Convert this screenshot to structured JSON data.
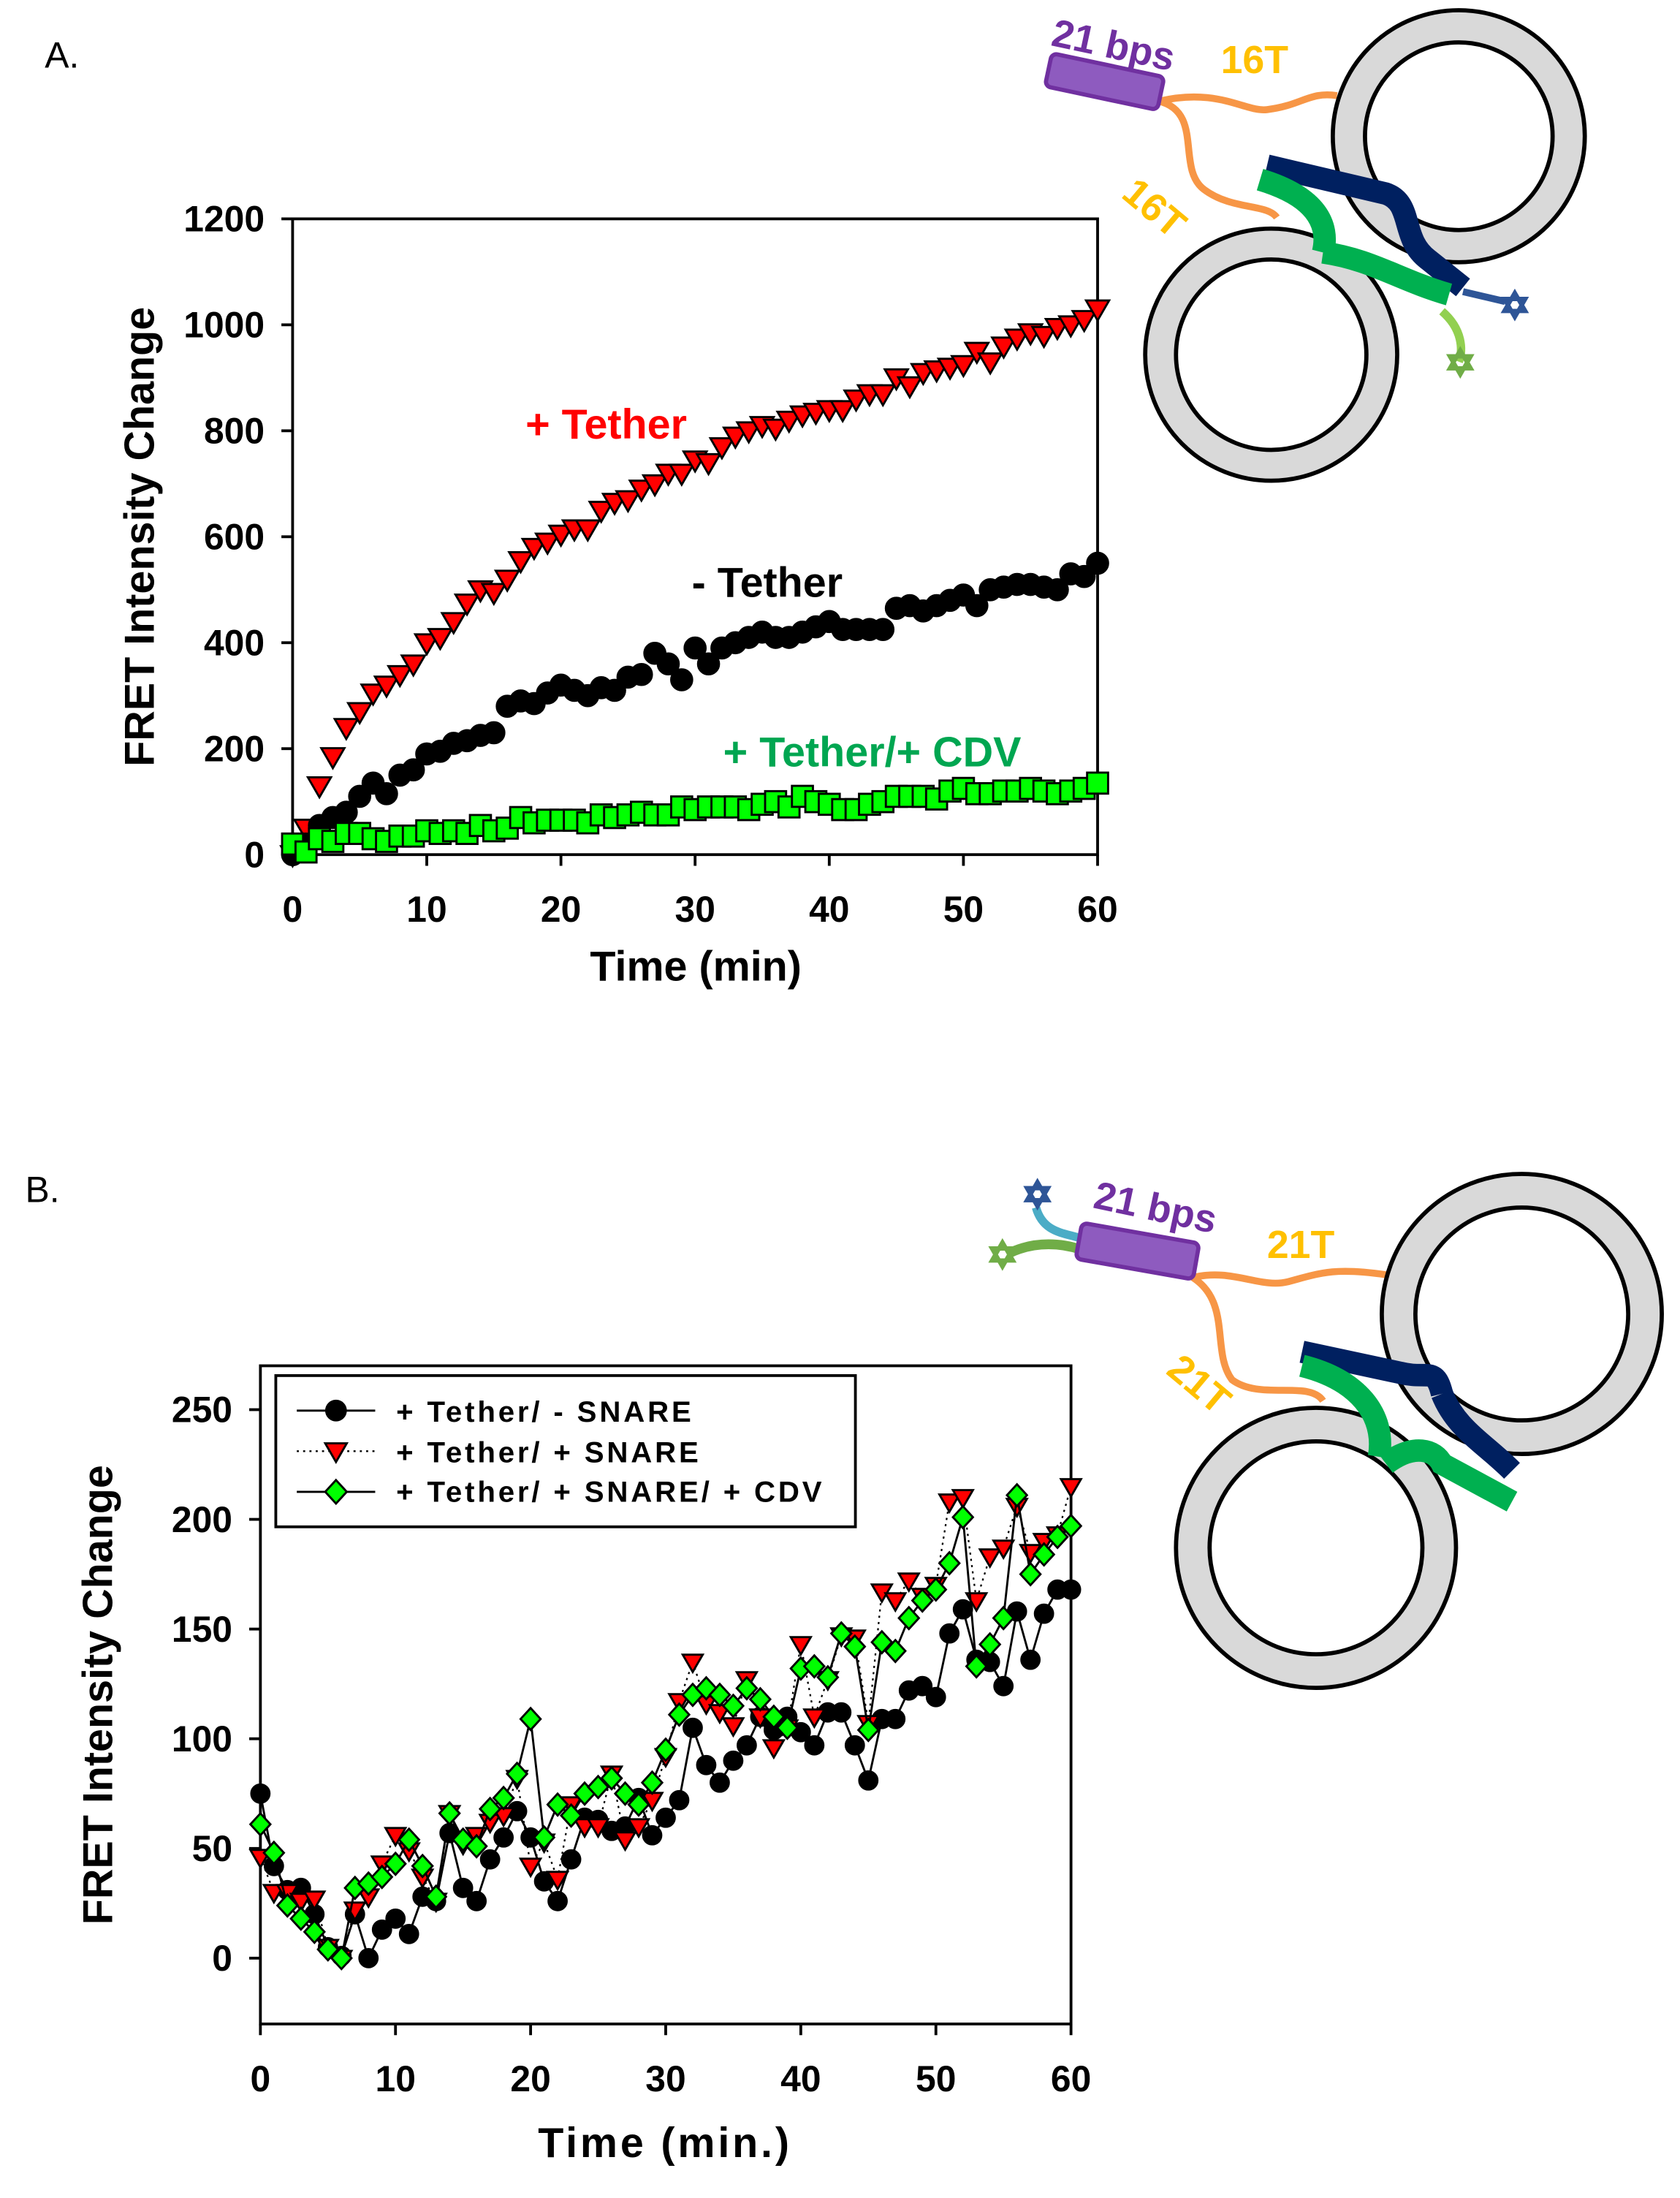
{
  "panels": {
    "a_label": "A.",
    "b_label": "B."
  },
  "diagram_a": {
    "bps": "21 bps",
    "linker_top": "16T",
    "linker_bottom": "16T"
  },
  "diagram_b": {
    "bps": "21 bps",
    "linker_top": "21T",
    "linker_bottom": "21T"
  },
  "colors": {
    "red": "#ff0000",
    "black": "#000000",
    "green": "#00ff00",
    "green_text": "#00a651",
    "purple": "#7030a0",
    "orange": "#f79646",
    "label_orange": "#ffc000",
    "navy": "#002060",
    "snare_green": "#00b050"
  },
  "chart_data": [
    {
      "type": "scatter",
      "xlabel": "Time (min)",
      "ylabel": "FRET Intensity Change",
      "xlim": [
        0,
        60
      ],
      "ylim": [
        0,
        1200
      ],
      "xticks": [
        0,
        10,
        20,
        30,
        40,
        50,
        60
      ],
      "yticks": [
        0,
        200,
        400,
        600,
        800,
        1000,
        1200
      ],
      "grid": false,
      "x": [
        0,
        1,
        2,
        3,
        4,
        5,
        6,
        7,
        8,
        9,
        10,
        11,
        12,
        13,
        14,
        15,
        16,
        17,
        18,
        19,
        20,
        21,
        22,
        23,
        24,
        25,
        26,
        27,
        28,
        29,
        30,
        31,
        32,
        33,
        34,
        35,
        36,
        37,
        38,
        39,
        40,
        41,
        42,
        43,
        44,
        45,
        46,
        47,
        48,
        49,
        50,
        51,
        52,
        53,
        54,
        55,
        56,
        57,
        58,
        59,
        60
      ],
      "series": [
        {
          "name": "+ Tether",
          "marker": "triangle-down",
          "color": "#ff0000",
          "values": [
            0,
            50,
            130,
            185,
            240,
            270,
            305,
            320,
            340,
            360,
            400,
            410,
            440,
            475,
            500,
            495,
            520,
            555,
            580,
            590,
            605,
            615,
            615,
            650,
            665,
            670,
            690,
            700,
            720,
            720,
            745,
            740,
            770,
            790,
            800,
            810,
            805,
            820,
            830,
            835,
            840,
            840,
            860,
            870,
            870,
            900,
            885,
            910,
            915,
            920,
            925,
            950,
            930,
            960,
            975,
            985,
            980,
            995,
            1000,
            1010,
            1030
          ]
        },
        {
          "name": "- Tether",
          "marker": "circle",
          "color": "#000000",
          "values": [
            0,
            20,
            55,
            70,
            80,
            110,
            135,
            115,
            150,
            160,
            190,
            195,
            210,
            215,
            225,
            230,
            280,
            290,
            285,
            305,
            320,
            310,
            300,
            315,
            310,
            335,
            340,
            380,
            360,
            330,
            390,
            360,
            390,
            400,
            410,
            420,
            410,
            410,
            420,
            430,
            440,
            425,
            425,
            425,
            425,
            465,
            470,
            460,
            470,
            480,
            490,
            470,
            500,
            505,
            510,
            510,
            505,
            500,
            530,
            525,
            550
          ]
        },
        {
          "name": "+ Tether/+ CDV",
          "marker": "square",
          "color": "#00ff00",
          "label_color": "#00a651",
          "values": [
            20,
            5,
            30,
            25,
            40,
            40,
            30,
            25,
            35,
            35,
            45,
            40,
            45,
            40,
            55,
            45,
            50,
            70,
            60,
            65,
            65,
            65,
            60,
            75,
            70,
            75,
            80,
            75,
            75,
            90,
            85,
            90,
            90,
            90,
            85,
            95,
            100,
            90,
            110,
            100,
            95,
            85,
            85,
            95,
            100,
            110,
            110,
            110,
            105,
            120,
            125,
            115,
            115,
            120,
            120,
            125,
            120,
            115,
            120,
            125,
            135
          ]
        }
      ]
    },
    {
      "type": "line",
      "xlabel": "Time (min.)",
      "ylabel": "FRET Intensity Change",
      "xlim": [
        0,
        60
      ],
      "ylim": [
        -30,
        270
      ],
      "xticks": [
        0,
        10,
        20,
        30,
        40,
        50,
        60
      ],
      "yticks": [
        0,
        50,
        100,
        150,
        200,
        250
      ],
      "grid": false,
      "legend": "top-left",
      "x": [
        0,
        1,
        2,
        3,
        4,
        5,
        6,
        7,
        8,
        9,
        10,
        11,
        12,
        13,
        14,
        15,
        16,
        17,
        18,
        19,
        20,
        21,
        22,
        23,
        24,
        25,
        26,
        27,
        28,
        29,
        30,
        31,
        32,
        33,
        34,
        35,
        36,
        37,
        38,
        39,
        40,
        41,
        42,
        43,
        44,
        45,
        46,
        47,
        48,
        49,
        50,
        51,
        52,
        53,
        54,
        55,
        56,
        57,
        58,
        59,
        60
      ],
      "series": [
        {
          "name": "+ Tether/ - SNARE",
          "marker": "circle",
          "line": "solid",
          "color": "#000000",
          "values": [
            75,
            42,
            31,
            32,
            20,
            5,
            1,
            20,
            0,
            13,
            18,
            11,
            28,
            26,
            57,
            32,
            26,
            45,
            55,
            67,
            55,
            35,
            26,
            45,
            64,
            63,
            58,
            60,
            73,
            56,
            64,
            72,
            105,
            88,
            80,
            90,
            97,
            110,
            104,
            110,
            103,
            97,
            112,
            112,
            97,
            81,
            109,
            109,
            122,
            124,
            119,
            148,
            159,
            136,
            135,
            124,
            158,
            136,
            157,
            168,
            168
          ]
        },
        {
          "name": "+ Tether/ + SNARE",
          "marker": "triangle-down",
          "line": "dotted",
          "color": "#ff0000",
          "values": [
            46,
            30,
            30,
            26,
            27,
            5,
            0,
            22,
            28,
            43,
            56,
            49,
            37,
            26,
            66,
            52,
            56,
            62,
            65,
            82,
            42,
            53,
            36,
            70,
            60,
            60,
            84,
            54,
            60,
            72,
            92,
            117,
            135,
            116,
            112,
            106,
            127,
            110,
            96,
            105,
            143,
            110,
            127,
            147,
            146,
            107,
            167,
            163,
            172,
            165,
            170,
            208,
            210,
            163,
            183,
            187,
            206,
            185,
            190,
            193,
            215
          ]
        },
        {
          "name": "+ Tether/ + SNARE/ + CDV",
          "marker": "diamond",
          "line": "solid",
          "color": "#00ff00",
          "values": [
            61,
            48,
            24,
            18,
            12,
            4,
            0,
            32,
            34,
            37,
            43,
            54,
            42,
            28,
            66,
            54,
            51,
            68,
            73,
            84,
            109,
            55,
            70,
            65,
            75,
            78,
            82,
            75,
            70,
            80,
            95,
            111,
            120,
            123,
            120,
            115,
            123,
            118,
            110,
            105,
            132,
            133,
            128,
            148,
            142,
            104,
            144,
            140,
            155,
            163,
            168,
            180,
            201,
            133,
            143,
            155,
            211,
            175,
            184,
            192,
            197
          ]
        }
      ]
    }
  ]
}
